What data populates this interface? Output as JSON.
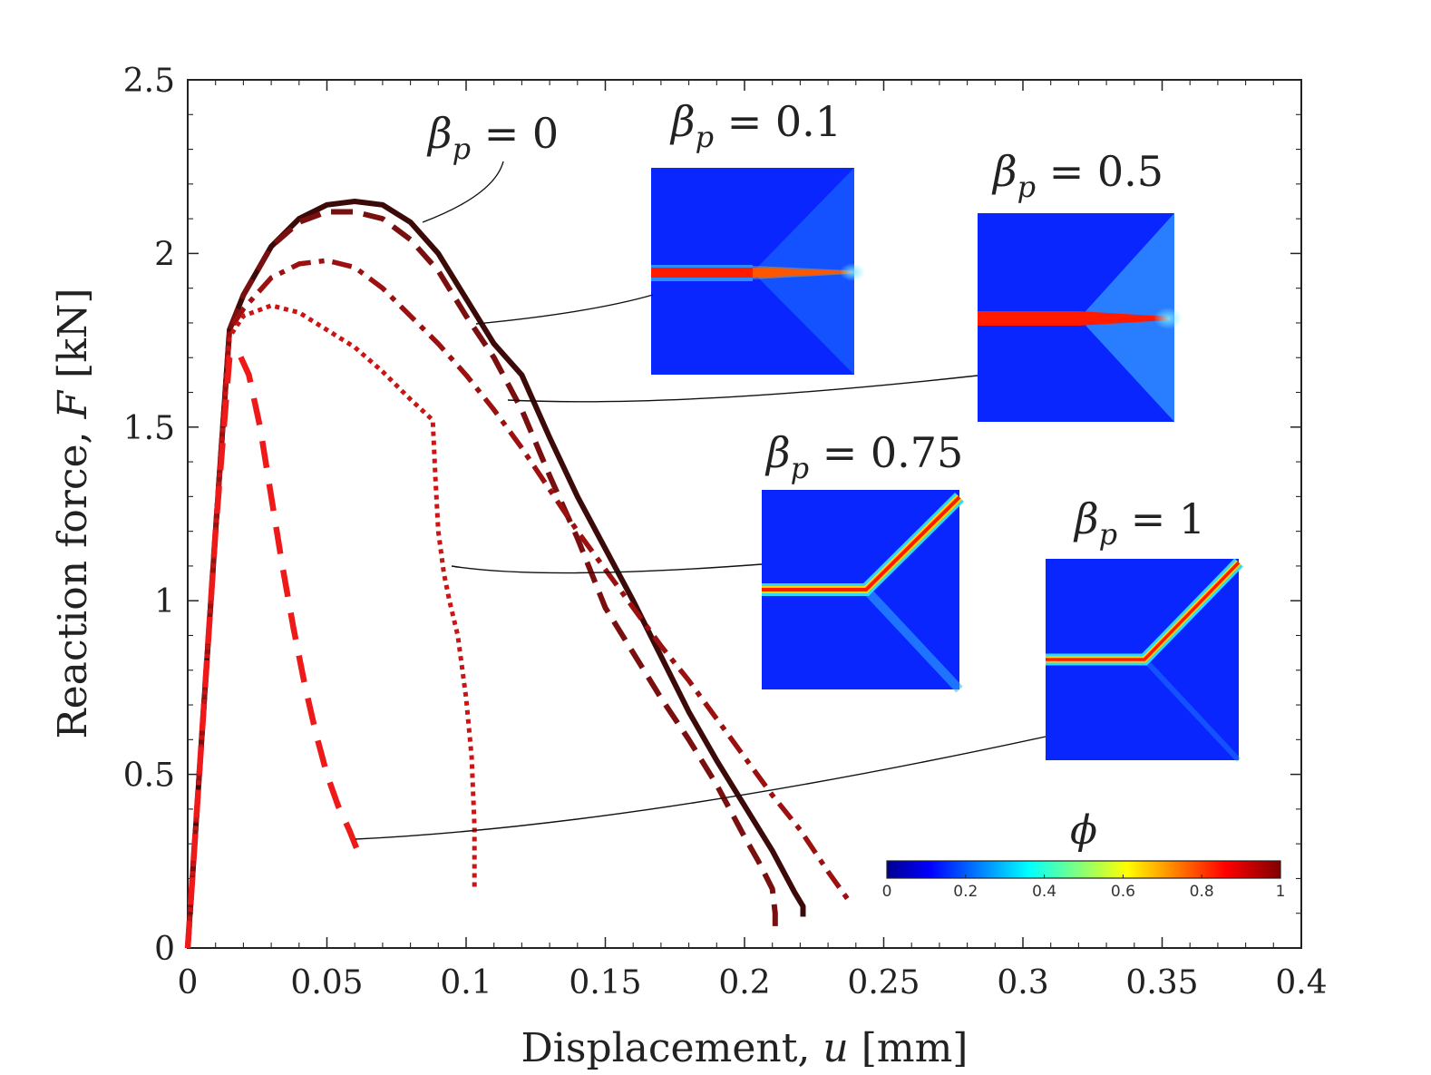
{
  "chart_data": {
    "type": "line",
    "xlabel": {
      "text": "Displacement, ",
      "var": "u",
      "unit": " [mm]"
    },
    "ylabel": {
      "text": "Reaction force, ",
      "var": "F",
      "unit": " [kN]"
    },
    "xlim": [
      0,
      0.4
    ],
    "ylim": [
      0,
      2.5
    ],
    "xticks": [
      0,
      0.05,
      0.1,
      0.15,
      0.2,
      0.25,
      0.3,
      0.35,
      0.4
    ],
    "xtick_labels": [
      "0",
      "0.05",
      "0.1",
      "0.15",
      "0.2",
      "0.25",
      "0.3",
      "0.35",
      "0.4"
    ],
    "yticks": [
      0,
      0.5,
      1,
      1.5,
      2,
      2.5
    ],
    "ytick_labels": [
      "0",
      "0.5",
      "1",
      "1.5",
      "2",
      "2.5"
    ],
    "grid": false,
    "series": [
      {
        "name": "βp = 0",
        "greek": "β",
        "sub": "p",
        "eq": " = 0",
        "color": "#3d0a0a",
        "style": "solid",
        "x": [
          0,
          0.005,
          0.01,
          0.015,
          0.02,
          0.03,
          0.04,
          0.05,
          0.06,
          0.07,
          0.08,
          0.09,
          0.1,
          0.11,
          0.12,
          0.13,
          0.14,
          0.15,
          0.16,
          0.17,
          0.18,
          0.19,
          0.2,
          0.21,
          0.218,
          0.221,
          0.221
        ],
        "y": [
          0,
          0.6,
          1.2,
          1.78,
          1.88,
          2.02,
          2.1,
          2.14,
          2.15,
          2.14,
          2.09,
          2.0,
          1.87,
          1.74,
          1.65,
          1.47,
          1.3,
          1.15,
          1.0,
          0.84,
          0.68,
          0.54,
          0.41,
          0.28,
          0.16,
          0.12,
          0.09
        ]
      },
      {
        "name": "βp = 0.1",
        "greek": "β",
        "sub": "p",
        "eq": " = 0.1",
        "color": "#7a0f0f",
        "style": "dash",
        "x": [
          0,
          0.005,
          0.01,
          0.015,
          0.02,
          0.03,
          0.04,
          0.05,
          0.06,
          0.07,
          0.08,
          0.09,
          0.1,
          0.11,
          0.12,
          0.13,
          0.14,
          0.15,
          0.16,
          0.17,
          0.18,
          0.19,
          0.2,
          0.205,
          0.21,
          0.211,
          0.211
        ],
        "y": [
          0,
          0.6,
          1.2,
          1.78,
          1.88,
          2.02,
          2.09,
          2.12,
          2.12,
          2.1,
          2.04,
          1.95,
          1.82,
          1.7,
          1.55,
          1.36,
          1.18,
          0.98,
          0.85,
          0.72,
          0.6,
          0.47,
          0.32,
          0.25,
          0.17,
          0.1,
          0.06
        ]
      },
      {
        "name": "βp = 0.5",
        "greek": "β",
        "sub": "p",
        "eq": " = 0.5",
        "color": "#9c1010",
        "style": "dashdot",
        "x": [
          0,
          0.005,
          0.01,
          0.015,
          0.02,
          0.03,
          0.04,
          0.05,
          0.06,
          0.07,
          0.08,
          0.09,
          0.1,
          0.11,
          0.12,
          0.13,
          0.14,
          0.15,
          0.16,
          0.17,
          0.18,
          0.19,
          0.2,
          0.21,
          0.22,
          0.23,
          0.238
        ],
        "y": [
          0,
          0.6,
          1.2,
          1.78,
          1.84,
          1.93,
          1.97,
          1.98,
          1.96,
          1.9,
          1.82,
          1.74,
          1.65,
          1.55,
          1.44,
          1.32,
          1.2,
          1.09,
          0.98,
          0.87,
          0.77,
          0.66,
          0.55,
          0.44,
          0.34,
          0.22,
          0.13
        ]
      },
      {
        "name": "βp = 0.75",
        "greek": "β",
        "sub": "p",
        "eq": " = 0.75",
        "color": "#cc1414",
        "style": "dot",
        "x": [
          0,
          0.005,
          0.01,
          0.015,
          0.02,
          0.03,
          0.04,
          0.05,
          0.06,
          0.07,
          0.08,
          0.088,
          0.089,
          0.09,
          0.092,
          0.094,
          0.097,
          0.1,
          0.102,
          0.103,
          0.103
        ],
        "y": [
          0,
          0.6,
          1.2,
          1.76,
          1.82,
          1.85,
          1.83,
          1.78,
          1.73,
          1.66,
          1.58,
          1.52,
          1.35,
          1.2,
          1.08,
          1.0,
          0.9,
          0.72,
          0.55,
          0.35,
          0.17
        ]
      },
      {
        "name": "βp = 1",
        "greek": "β",
        "sub": "p",
        "eq": " = 1",
        "color": "#ee1a1a",
        "style": "longdash",
        "x": [
          0,
          0.005,
          0.01,
          0.015,
          0.018,
          0.022,
          0.026,
          0.03,
          0.034,
          0.038,
          0.042,
          0.046,
          0.05,
          0.054,
          0.058,
          0.061
        ],
        "y": [
          0,
          0.6,
          1.2,
          1.7,
          1.72,
          1.65,
          1.5,
          1.3,
          1.1,
          0.92,
          0.76,
          0.62,
          0.5,
          0.41,
          0.34,
          0.28
        ]
      }
    ],
    "colorbar": {
      "title": "ϕ",
      "ticks": [
        "0",
        "0.2",
        "0.4",
        "0.6",
        "0.8",
        "1"
      ]
    }
  }
}
